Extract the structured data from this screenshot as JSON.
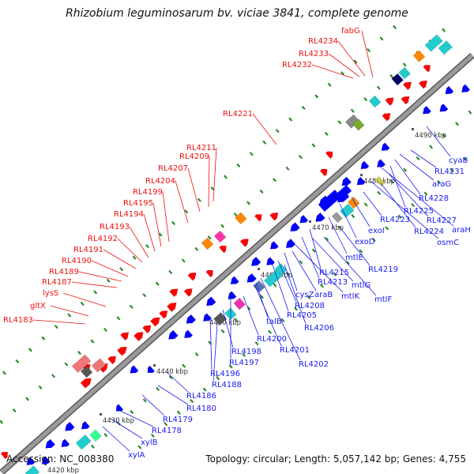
{
  "title": "Rhizobium leguminosarum bv. viciae 3841, complete genome",
  "accession": "Accession: NC_008380",
  "topology": "Topology: circular; Length: 5,057,142 bp; Genes: 4,755",
  "colors": {
    "forward_gene": "#ff0000",
    "reverse_gene": "#0000ff",
    "forward_label": "#ee1111",
    "reverse_label": "#1a1aee",
    "backbone": "#9a9a9a",
    "tick": "#2a8a2a"
  },
  "ticks": [
    {
      "label": "4420 kbp"
    },
    {
      "label": "4430 kbp"
    },
    {
      "label": "4440 kbp"
    },
    {
      "label": "4450 kbp"
    },
    {
      "label": "4460 kbp"
    },
    {
      "label": "4470 kbp"
    },
    {
      "label": "4480 kbp"
    },
    {
      "label": "4490 kbp"
    }
  ],
  "forward_labels": [
    {
      "text": "fabG"
    },
    {
      "text": "RL4234"
    },
    {
      "text": "RL4233"
    },
    {
      "text": "RL4232"
    },
    {
      "text": "RL4221"
    },
    {
      "text": "RL4211"
    },
    {
      "text": "RL4209"
    },
    {
      "text": "RL4207"
    },
    {
      "text": "RL4204"
    },
    {
      "text": "RL4199"
    },
    {
      "text": "RL4195"
    },
    {
      "text": "RL4194"
    },
    {
      "text": "RL4193"
    },
    {
      "text": "RL4192"
    },
    {
      "text": "RL4191"
    },
    {
      "text": "RL4190"
    },
    {
      "text": "RL4189"
    },
    {
      "text": "RL4187"
    },
    {
      "text": "lysS"
    },
    {
      "text": "gltX"
    },
    {
      "text": "RL4183"
    }
  ],
  "reverse_labels": [
    {
      "text": "cyaB"
    },
    {
      "text": "RL4231"
    },
    {
      "text": "araG"
    },
    {
      "text": "RL4228"
    },
    {
      "text": "RL4225"
    },
    {
      "text": "RL4227"
    },
    {
      "text": "araH"
    },
    {
      "text": "RL4224"
    },
    {
      "text": "osmC"
    },
    {
      "text": "RL4223"
    },
    {
      "text": "exoI"
    },
    {
      "text": "exoD"
    },
    {
      "text": "mtlE"
    },
    {
      "text": "RL4219"
    },
    {
      "text": "RL4215"
    },
    {
      "text": "RL4213"
    },
    {
      "text": "mtlG"
    },
    {
      "text": "mtlK"
    },
    {
      "text": "mtlF"
    },
    {
      "text": "cysZ"
    },
    {
      "text": "araB"
    },
    {
      "text": "RL4208"
    },
    {
      "text": "RL4205"
    },
    {
      "text": "RL4206"
    },
    {
      "text": "talB"
    },
    {
      "text": "RL4200"
    },
    {
      "text": "RL4201"
    },
    {
      "text": "RL4202"
    },
    {
      "text": "RL4198"
    },
    {
      "text": "RL4197"
    },
    {
      "text": "RL4196"
    },
    {
      "text": "RL4188"
    },
    {
      "text": "RL4186"
    },
    {
      "text": "RL4180"
    },
    {
      "text": "RL4179"
    },
    {
      "text": "RL4178"
    },
    {
      "text": "xylB"
    },
    {
      "text": "xylA"
    }
  ]
}
